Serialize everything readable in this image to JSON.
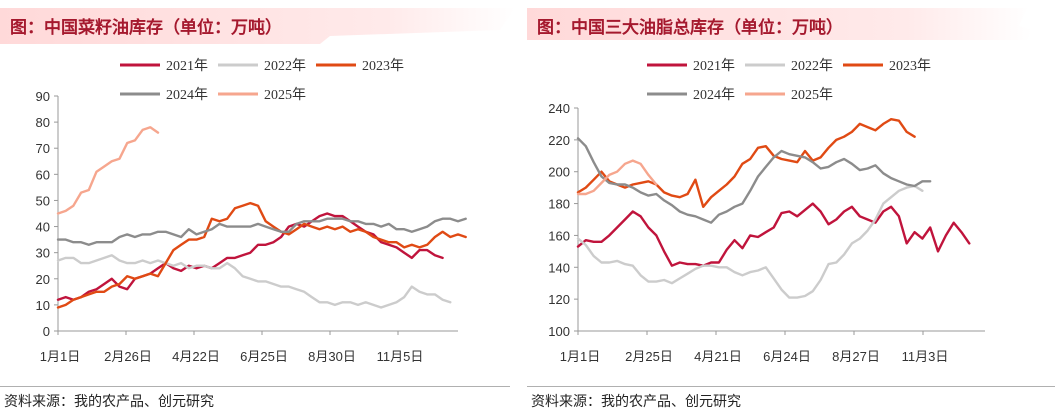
{
  "source_text": "资料来源：我的农产品、创元研究",
  "chart_data": [
    {
      "type": "line",
      "title": "图：中国菜籽油库存（单位：万吨）",
      "x_labels": [
        "1月1日",
        "2月26日",
        "4月22日",
        "6月25日",
        "8月30日",
        "11月5日"
      ],
      "ylim": [
        0,
        90
      ],
      "yticks": [
        0,
        10,
        20,
        30,
        40,
        50,
        60,
        70,
        80,
        90
      ],
      "x_extent": 52,
      "grid": false,
      "legend_position": "top",
      "series": [
        {
          "name": "2021年",
          "color": "#c0143c",
          "values": [
            12,
            13,
            12,
            13,
            15,
            16,
            18,
            20,
            17,
            16,
            20,
            21,
            22,
            24,
            26,
            24,
            23,
            25,
            24,
            25,
            24,
            26,
            28,
            28,
            29,
            30,
            33,
            33,
            34,
            36,
            40,
            41,
            40,
            42,
            44,
            45,
            44,
            44,
            42,
            40,
            38,
            37,
            34,
            33,
            32,
            30,
            28,
            31,
            31,
            29,
            28
          ]
        },
        {
          "name": "2022年",
          "color": "#cccccc",
          "values": [
            27,
            28,
            28,
            26,
            26,
            27,
            28,
            29,
            27,
            26,
            26,
            27,
            26,
            27,
            26,
            25,
            26,
            24,
            25,
            25,
            24,
            24,
            26,
            24,
            21,
            20,
            19,
            19,
            18,
            17,
            17,
            16,
            15,
            13,
            11,
            11,
            10,
            11,
            11,
            10,
            11,
            10,
            9,
            10,
            11,
            13,
            17,
            15,
            14,
            14,
            12,
            11
          ]
        },
        {
          "name": "2023年",
          "color": "#e04a14",
          "values": [
            9,
            10,
            12,
            13,
            14,
            15,
            15,
            17,
            18,
            21,
            20,
            21,
            22,
            21,
            26,
            31,
            33,
            35,
            35,
            36,
            43,
            42,
            43,
            47,
            48,
            49,
            48,
            42,
            40,
            38,
            37,
            39,
            41,
            40,
            39,
            40,
            39,
            40,
            38,
            39,
            38,
            36,
            35,
            34,
            34,
            32,
            33,
            32,
            33,
            36,
            38,
            36,
            37,
            36
          ]
        },
        {
          "name": "2024年",
          "color": "#8c8c8c",
          "values": [
            35,
            35,
            34,
            34,
            33,
            34,
            34,
            34,
            36,
            37,
            36,
            37,
            37,
            38,
            38,
            37,
            36,
            39,
            37,
            38,
            39,
            41,
            40,
            40,
            40,
            40,
            41,
            40,
            39,
            38,
            38,
            41,
            42,
            42,
            42,
            43,
            43,
            43,
            42,
            42,
            41,
            41,
            40,
            41,
            39,
            39,
            38,
            39,
            40,
            42,
            43,
            43,
            42,
            43
          ]
        },
        {
          "name": "2025年",
          "color": "#f6a68e",
          "values": [
            45,
            46,
            48,
            53,
            54,
            61,
            63,
            65,
            66,
            72,
            73,
            77,
            78,
            76
          ]
        }
      ]
    },
    {
      "type": "line",
      "title": "图：中国三大油脂总库存（单位：万吨）",
      "x_labels": [
        "1月1日",
        "2月25日",
        "4月21日",
        "6月24日",
        "8月27日",
        "11月3日"
      ],
      "ylim": [
        100,
        240
      ],
      "yticks": [
        100,
        120,
        140,
        160,
        180,
        200,
        220,
        240
      ],
      "x_extent": 52,
      "grid": false,
      "legend_position": "top",
      "series": [
        {
          "name": "2021年",
          "color": "#c0143c",
          "values": [
            153,
            157,
            156,
            156,
            160,
            165,
            170,
            175,
            172,
            165,
            160,
            150,
            141,
            143,
            142,
            142,
            141,
            143,
            143,
            151,
            157,
            152,
            160,
            159,
            162,
            165,
            174,
            175,
            172,
            176,
            180,
            175,
            167,
            170,
            175,
            178,
            172,
            170,
            168,
            175,
            178,
            172,
            155,
            162,
            158,
            165,
            150,
            160,
            168,
            162,
            155
          ]
        },
        {
          "name": "2022年",
          "color": "#cccccc",
          "values": [
            158,
            154,
            147,
            143,
            143,
            144,
            142,
            141,
            135,
            131,
            131,
            132,
            130,
            133,
            136,
            139,
            141,
            141,
            140,
            140,
            137,
            135,
            137,
            138,
            140,
            133,
            126,
            121,
            121,
            122,
            125,
            132,
            142,
            143,
            148,
            155,
            158,
            163,
            170,
            180,
            184,
            188,
            190,
            191,
            188
          ]
        },
        {
          "name": "2023年",
          "color": "#e04a14",
          "values": [
            187,
            190,
            195,
            200,
            194,
            192,
            190,
            192,
            193,
            194,
            192,
            187,
            185,
            184,
            186,
            195,
            178,
            184,
            188,
            192,
            197,
            205,
            208,
            215,
            216,
            210,
            208,
            207,
            206,
            213,
            207,
            209,
            215,
            220,
            222,
            225,
            230,
            228,
            226,
            230,
            233,
            232,
            225,
            222
          ]
        },
        {
          "name": "2024年",
          "color": "#8c8c8c",
          "values": [
            221,
            216,
            206,
            197,
            193,
            192,
            192,
            190,
            187,
            185,
            186,
            182,
            179,
            175,
            173,
            172,
            170,
            168,
            173,
            175,
            178,
            180,
            188,
            197,
            203,
            209,
            213,
            211,
            210,
            209,
            206,
            202,
            203,
            206,
            208,
            205,
            201,
            202,
            204,
            199,
            196,
            194,
            192,
            191,
            194,
            194
          ]
        },
        {
          "name": "2025年",
          "color": "#f6a68e",
          "values": [
            186,
            186,
            188,
            193,
            198,
            200,
            205,
            207,
            205,
            198,
            192
          ]
        }
      ]
    }
  ]
}
